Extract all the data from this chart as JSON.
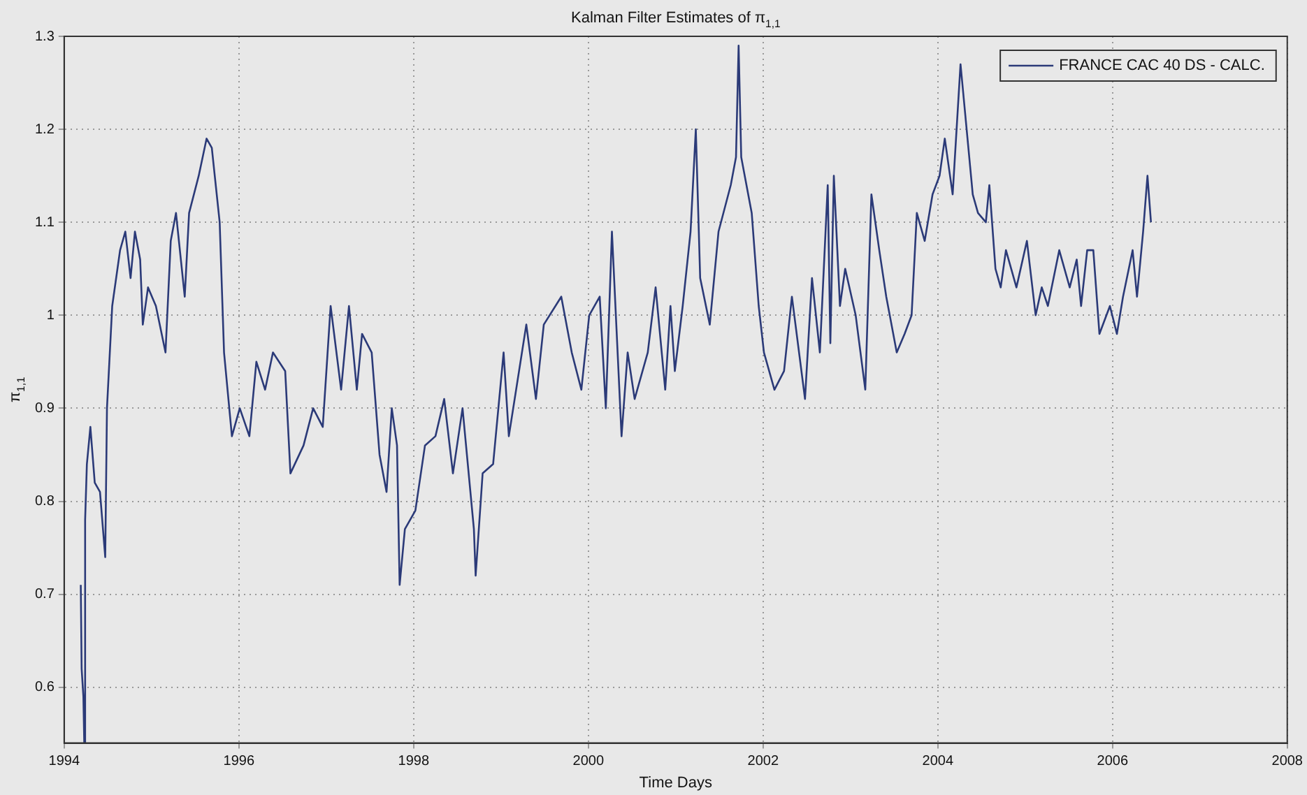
{
  "chart_data": {
    "type": "line",
    "title": "Kalman Filter Estimates of π$_{1,1}$",
    "xlabel": "Time Days",
    "ylabel": "π$_{1,1}$",
    "xlim": [
      1994,
      2008
    ],
    "xticks": [
      1994,
      1996,
      1998,
      2000,
      2002,
      2004,
      2006,
      2008
    ],
    "ylim": [
      0.54,
      1.3
    ],
    "yticks": [
      0.6,
      0.7,
      0.8,
      0.9,
      1,
      1.1,
      1.2,
      1.3
    ],
    "grid": true,
    "legend": "top right",
    "marker": "none",
    "line_style": "solid",
    "series": [
      {
        "name": "FRANCE CAC 40 DS - CALC.",
        "color": "#2b3a78",
        "x": [
          1994.19,
          1994.2,
          1994.22,
          1994.23,
          1994.24,
          1994.26,
          1994.3,
          1994.35,
          1994.41,
          1994.47,
          1994.49,
          1994.55,
          1994.64,
          1994.7,
          1994.76,
          1994.81,
          1994.87,
          1994.9,
          1994.96,
          1995.05,
          1995.16,
          1995.22,
          1995.28,
          1995.38,
          1995.43,
          1995.54,
          1995.63,
          1995.69,
          1995.78,
          1995.83,
          1995.92,
          1996.01,
          1996.12,
          1996.2,
          1996.3,
          1996.39,
          1996.53,
          1996.59,
          1996.74,
          1996.85,
          1996.96,
          1997.05,
          1997.17,
          1997.26,
          1997.35,
          1997.41,
          1997.52,
          1997.61,
          1997.69,
          1997.75,
          1997.81,
          1997.84,
          1997.9,
          1998.02,
          1998.13,
          1998.25,
          1998.35,
          1998.45,
          1998.56,
          1998.69,
          1998.71,
          1998.79,
          1998.91,
          1999.03,
          1999.09,
          1999.29,
          1999.4,
          1999.49,
          1999.69,
          1999.81,
          1999.92,
          2000.01,
          2000.13,
          2000.2,
          2000.27,
          2000.38,
          2000.45,
          2000.53,
          2000.68,
          2000.77,
          2000.88,
          2000.94,
          2000.99,
          2001.08,
          2001.17,
          2001.23,
          2001.28,
          2001.39,
          2001.49,
          2001.63,
          2001.69,
          2001.72,
          2001.75,
          2001.87,
          2001.95,
          2002.01,
          2002.13,
          2002.24,
          2002.33,
          2002.48,
          2002.56,
          2002.65,
          2002.74,
          2002.77,
          2002.81,
          2002.88,
          2002.94,
          2003.06,
          2003.17,
          2003.24,
          2003.33,
          2003.41,
          2003.53,
          2003.62,
          2003.7,
          2003.76,
          2003.85,
          2003.94,
          2004.02,
          2004.08,
          2004.17,
          2004.26,
          2004.34,
          2004.4,
          2004.46,
          2004.55,
          2004.59,
          2004.66,
          2004.72,
          2004.78,
          2004.9,
          2005.02,
          2005.12,
          2005.19,
          2005.26,
          2005.39,
          2005.51,
          2005.59,
          2005.64,
          2005.71,
          2005.78,
          2005.85,
          2005.97,
          2006.05,
          2006.12,
          2006.23,
          2006.28,
          2006.35,
          2006.4,
          2006.44
        ],
        "values": [
          0.71,
          0.62,
          0.59,
          0.54,
          0.78,
          0.84,
          0.88,
          0.82,
          0.81,
          0.74,
          0.9,
          1.01,
          1.07,
          1.09,
          1.04,
          1.09,
          1.06,
          0.99,
          1.03,
          1.01,
          0.96,
          1.08,
          1.11,
          1.02,
          1.11,
          1.15,
          1.19,
          1.18,
          1.1,
          0.96,
          0.87,
          0.9,
          0.87,
          0.95,
          0.92,
          0.96,
          0.94,
          0.83,
          0.86,
          0.9,
          0.88,
          1.01,
          0.92,
          1.01,
          0.92,
          0.98,
          0.96,
          0.85,
          0.81,
          0.9,
          0.86,
          0.71,
          0.77,
          0.79,
          0.86,
          0.87,
          0.91,
          0.83,
          0.9,
          0.77,
          0.72,
          0.83,
          0.84,
          0.96,
          0.87,
          0.99,
          0.91,
          0.99,
          1.02,
          0.96,
          0.92,
          1,
          1.02,
          0.9,
          1.09,
          0.87,
          0.96,
          0.91,
          0.96,
          1.03,
          0.92,
          1.01,
          0.94,
          1.01,
          1.09,
          1.2,
          1.04,
          0.99,
          1.09,
          1.14,
          1.17,
          1.29,
          1.17,
          1.11,
          1.01,
          0.96,
          0.92,
          0.94,
          1.02,
          0.91,
          1.04,
          0.96,
          1.14,
          0.97,
          1.15,
          1.01,
          1.05,
          1,
          0.92,
          1.13,
          1.07,
          1.02,
          0.96,
          0.98,
          1,
          1.11,
          1.08,
          1.13,
          1.15,
          1.19,
          1.13,
          1.27,
          1.19,
          1.13,
          1.11,
          1.1,
          1.14,
          1.05,
          1.03,
          1.07,
          1.03,
          1.08,
          1,
          1.03,
          1.01,
          1.07,
          1.03,
          1.06,
          1.01,
          1.07,
          1.07,
          0.98,
          1.01,
          0.98,
          1.02,
          1.07,
          1.02,
          1.09,
          1.15,
          1.1
        ]
      }
    ]
  }
}
